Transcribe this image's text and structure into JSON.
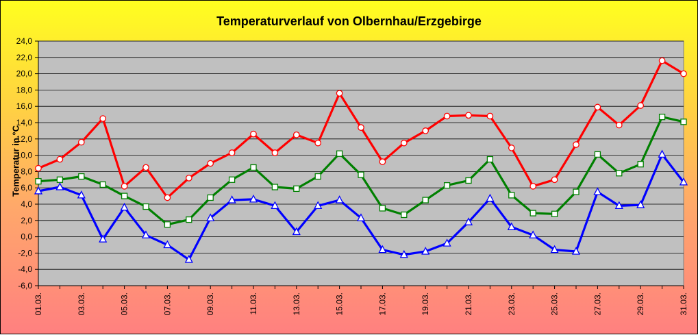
{
  "chart_data": {
    "type": "line",
    "title": "Temperaturverlauf von Olbernhau/Erzgebirge",
    "xlabel": "",
    "ylabel": "Temperatur in °C",
    "ylim": [
      -6,
      24
    ],
    "yticks": [
      "-6,0",
      "-4,0",
      "-2,0",
      "0,0",
      "2,0",
      "4,0",
      "6,0",
      "8,0",
      "10,0",
      "12,0",
      "14,0",
      "16,0",
      "18,0",
      "20,0",
      "22,0",
      "24,0"
    ],
    "categories": [
      "01.03.",
      "02.03.",
      "03.03.",
      "04.03.",
      "05.03.",
      "06.03.",
      "07.03.",
      "08.03.",
      "09.03.",
      "10.03.",
      "11.03.",
      "12.03.",
      "13.03.",
      "14.03.",
      "15.03.",
      "16.03.",
      "17.03.",
      "18.03.",
      "19.03.",
      "20.03.",
      "21.03.",
      "22.03.",
      "23.03.",
      "24.03.",
      "25.03.",
      "26.03.",
      "27.03.",
      "28.03.",
      "29.03.",
      "30.03.",
      "31.03."
    ],
    "category_labels": [
      "01.03.",
      "",
      "03.03.",
      "",
      "05.03.",
      "",
      "07.03.",
      "",
      "09.03.",
      "",
      "11.03.",
      "",
      "13.03.",
      "",
      "15.03.",
      "",
      "17.03.",
      "",
      "19.03.",
      "",
      "21.03.",
      "",
      "23.03.",
      "",
      "25.03.",
      "",
      "27.03.",
      "",
      "29.03.",
      "",
      "31.03."
    ],
    "grid": "horizontal",
    "series": [
      {
        "color": "#ff0000",
        "marker": "circle",
        "values": [
          8.4,
          9.5,
          11.6,
          14.5,
          6.2,
          8.5,
          4.8,
          7.2,
          9.0,
          10.3,
          12.6,
          10.3,
          12.5,
          11.5,
          17.6,
          13.4,
          9.2,
          11.5,
          13.0,
          14.8,
          14.9,
          14.8,
          10.9,
          6.2,
          7.0,
          11.3,
          15.9,
          13.7,
          16.1,
          21.6,
          20.0
        ]
      },
      {
        "color": "#008000",
        "marker": "square",
        "values": [
          6.8,
          7.0,
          7.4,
          6.4,
          5.0,
          3.7,
          1.5,
          2.1,
          4.8,
          7.0,
          8.5,
          6.1,
          5.9,
          7.4,
          10.2,
          7.6,
          3.5,
          2.7,
          4.5,
          6.3,
          6.9,
          9.5,
          5.1,
          2.9,
          2.8,
          5.5,
          10.1,
          7.8,
          8.9,
          14.7,
          14.1
        ]
      },
      {
        "color": "#0000ff",
        "marker": "triangle",
        "values": [
          5.6,
          6.1,
          5.1,
          -0.3,
          3.6,
          0.2,
          -1.0,
          -2.8,
          2.3,
          4.5,
          4.6,
          3.8,
          0.6,
          3.8,
          4.5,
          2.3,
          -1.6,
          -2.2,
          -1.8,
          -0.8,
          1.8,
          4.7,
          1.2,
          0.2,
          -1.6,
          -1.8,
          5.5,
          3.8,
          3.9,
          10.1,
          6.7
        ]
      }
    ]
  }
}
